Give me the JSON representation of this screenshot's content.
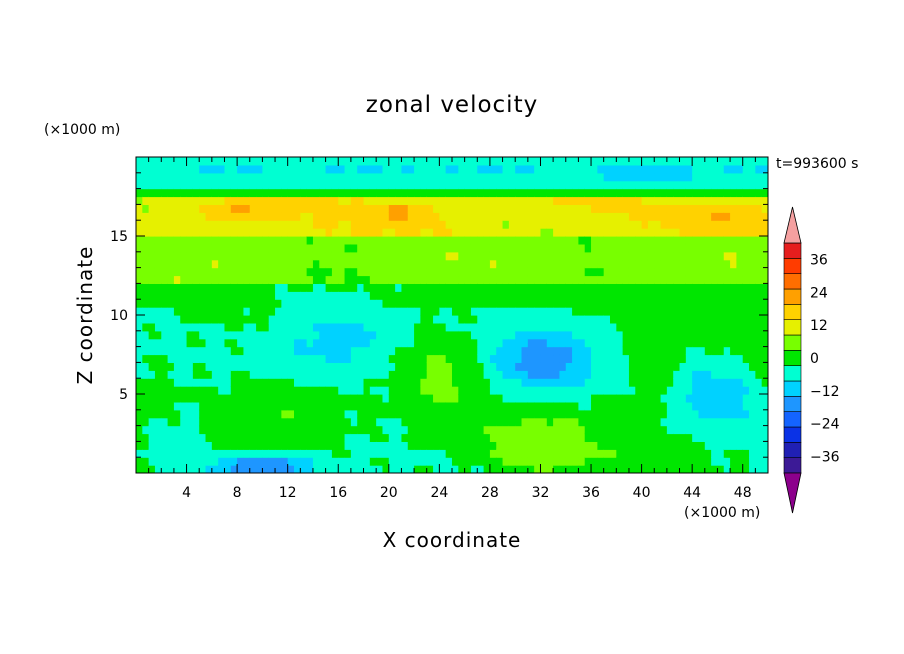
{
  "chart_data": {
    "type": "heatmap",
    "title": "zonal velocity",
    "xlabel": "X coordinate",
    "ylabel": "Z coordinate",
    "x_unit": "(×1000 m)",
    "y_unit": "(×1000 m)",
    "time_label": "t=993600 s",
    "xlim": [
      0,
      50
    ],
    "ylim": [
      0,
      20
    ],
    "x_ticks": [
      4,
      8,
      12,
      16,
      20,
      24,
      28,
      32,
      36,
      40,
      44,
      48
    ],
    "y_ticks": [
      5,
      10,
      15
    ],
    "colorbar": {
      "levels": [
        -42,
        -36,
        -30,
        -24,
        -18,
        -12,
        -6,
        0,
        6,
        12,
        18,
        24,
        30,
        36,
        42
      ],
      "tick_labels": [
        36,
        24,
        12,
        0,
        -12,
        -24,
        -36
      ],
      "colors": [
        "#8c008c",
        "#3c1a96",
        "#2020b4",
        "#0a32e6",
        "#1464ff",
        "#1e96ff",
        "#00d2ff",
        "#00ffd2",
        "#00e600",
        "#78ff00",
        "#e6f000",
        "#ffd200",
        "#ffa000",
        "#ff6e00",
        "#ff3c00",
        "#e61e1e",
        "#f5a0a0"
      ],
      "extend": "both"
    },
    "field_features": [
      {
        "x": 8,
        "z": 16.5,
        "value": 25
      },
      {
        "x": 21,
        "z": 16.6,
        "value": 25
      },
      {
        "x": 47,
        "z": 16.3,
        "value": 24
      },
      {
        "x": 36,
        "z": 15.5,
        "value": 16
      },
      {
        "x": 40,
        "z": 18.8,
        "value": -8
      },
      {
        "x": 16,
        "z": 9,
        "value": -7
      },
      {
        "x": 32,
        "z": 7,
        "value": -14
      },
      {
        "x": 46,
        "z": 5,
        "value": -8
      },
      {
        "x": 10,
        "z": 0.4,
        "value": -20
      },
      {
        "x": 24,
        "z": 6,
        "value": 6
      },
      {
        "x": 32,
        "z": 2,
        "value": 7
      },
      {
        "x": 12,
        "z": 4,
        "value": 5
      }
    ]
  }
}
